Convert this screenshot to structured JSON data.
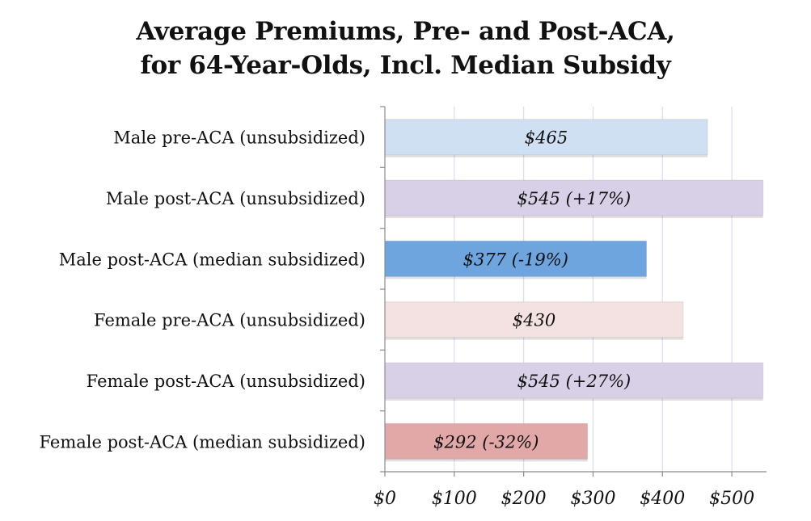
{
  "chart_data": {
    "type": "bar",
    "orientation": "horizontal",
    "title_lines": [
      "Average Premiums, Pre- and Post-ACA,",
      "for 64-Year-Olds, Incl. Median Subsidy"
    ],
    "categories": [
      "Male pre-ACA (unsubsidized)",
      "Male post-ACA (unsubsidized)",
      "Male post-ACA (median subsidized)",
      "Female pre-ACA (unsubsidized)",
      "Female post-ACA (unsubsidized)",
      "Female post-ACA (median subsidized)"
    ],
    "values": [
      465,
      545,
      377,
      430,
      545,
      292
    ],
    "data_labels": [
      "$465",
      "$545 (+17%)",
      "$377 (-19%)",
      "$430",
      "$545 (+27%)",
      "$292 (-32%)"
    ],
    "bar_colors": [
      "#cfe0f3",
      "#d8d0e6",
      "#6ea5df",
      "#f4e2e2",
      "#d8d0e6",
      "#e2a7a7"
    ],
    "xlim": [
      0,
      550
    ],
    "x_ticks": [
      0,
      100,
      200,
      300,
      400,
      500
    ],
    "x_tick_labels": [
      "$0",
      "$100",
      "$200",
      "$300",
      "$400",
      "$500"
    ],
    "grid": true,
    "grid_color": "#dcdcf0",
    "legend": "none"
  }
}
